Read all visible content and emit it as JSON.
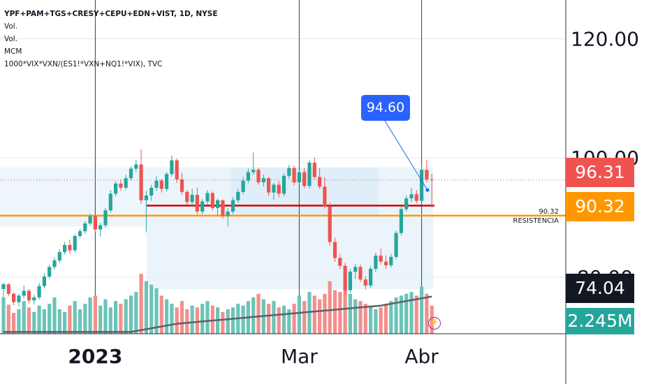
{
  "legend": {
    "title": "YPF+PAM+TGS+CRESY+CEPU+EDN+VIST, 1D, NYSE",
    "lines": [
      "Vol.",
      "Vol.",
      "MCM",
      "1000*VIX*VXN/(ES1!*VXN+NQ1!*VIX), TVC"
    ]
  },
  "callout": {
    "label": "94.60",
    "value": 94.6
  },
  "annotation": {
    "value_label": "90.32",
    "text": "RESISTENCIA"
  },
  "tags": {
    "last_price": {
      "label": "96.31",
      "value": 96.31,
      "color": "#ef5350"
    },
    "resistance": {
      "label": "90.32",
      "value": 90.32,
      "color": "#ff9800"
    },
    "indicator": {
      "label": "74.04",
      "color": "#131722"
    },
    "volume": {
      "label": "2.245M",
      "color": "#26a69a"
    }
  },
  "icons": {
    "alert": "lightning-bolt-icon"
  },
  "chart_data": {
    "type": "candlestick",
    "symbol": "YPF+PAM+TGS+CRESY+CEPU+EDN+VIST",
    "interval": "1D",
    "exchange": "NYSE",
    "y_ticks": [
      {
        "label": "120.00",
        "value": 120
      },
      {
        "label": "100.00",
        "value": 100
      },
      {
        "label": "80.00",
        "value": 80
      }
    ],
    "x_ticks": [
      {
        "label": "2023",
        "index": 18,
        "bold": true
      },
      {
        "label": "Mar",
        "index": 58,
        "bold": false
      },
      {
        "label": "Abr",
        "index": 82,
        "bold": false
      }
    ],
    "ylim": [
      70.5,
      126.5
    ],
    "colors": {
      "up": "#26a69a",
      "down": "#ef5350",
      "up_volume": "#6cc4b8",
      "down_volume": "#f38f8c"
    },
    "resistance_level": 90.32,
    "support_band": 92.0,
    "last_price": 96.31,
    "ohlc": [
      [
        78.0,
        79.1,
        76.6,
        78.8
      ],
      [
        78.8,
        79.0,
        76.8,
        77.2
      ],
      [
        77.2,
        77.4,
        75.3,
        75.8
      ],
      [
        75.8,
        77.2,
        75.1,
        76.9
      ],
      [
        76.9,
        78.6,
        76.4,
        77.7
      ],
      [
        77.7,
        78.0,
        75.6,
        76.1
      ],
      [
        76.1,
        77.0,
        75.4,
        76.6
      ],
      [
        76.6,
        79.0,
        76.2,
        78.5
      ],
      [
        78.5,
        80.6,
        78.1,
        80.1
      ],
      [
        80.1,
        82.1,
        79.8,
        81.7
      ],
      [
        81.7,
        83.3,
        81.3,
        82.8
      ],
      [
        82.8,
        84.7,
        82.4,
        84.2
      ],
      [
        84.2,
        85.9,
        83.8,
        85.4
      ],
      [
        85.4,
        86.3,
        83.9,
        84.5
      ],
      [
        84.5,
        87.2,
        84.1,
        86.9
      ],
      [
        86.9,
        88.1,
        86.5,
        87.7
      ],
      [
        87.7,
        89.4,
        87.3,
        89.0
      ],
      [
        89.0,
        90.6,
        88.7,
        90.2
      ],
      [
        90.2,
        90.5,
        87.5,
        88.0
      ],
      [
        88.0,
        89.1,
        86.8,
        88.7
      ],
      [
        88.7,
        91.6,
        88.3,
        91.2
      ],
      [
        91.2,
        94.6,
        90.8,
        94.0
      ],
      [
        94.0,
        96.1,
        93.6,
        95.7
      ],
      [
        95.7,
        96.4,
        94.5,
        95.0
      ],
      [
        95.0,
        97.2,
        94.7,
        96.6
      ],
      [
        96.6,
        98.6,
        96.2,
        98.2
      ],
      [
        98.2,
        99.7,
        97.6,
        98.9
      ],
      [
        98.9,
        101.5,
        92.3,
        92.9
      ],
      [
        92.9,
        94.5,
        87.5,
        93.7
      ],
      [
        93.7,
        95.5,
        92.8,
        95.0
      ],
      [
        95.0,
        96.9,
        94.5,
        96.2
      ],
      [
        96.2,
        96.5,
        94.2,
        94.8
      ],
      [
        94.8,
        97.6,
        94.4,
        97.3
      ],
      [
        97.3,
        100.4,
        96.9,
        99.6
      ],
      [
        99.6,
        99.9,
        95.8,
        96.4
      ],
      [
        96.4,
        97.5,
        93.8,
        94.3
      ],
      [
        94.3,
        94.6,
        92.1,
        92.6
      ],
      [
        92.6,
        94.8,
        91.9,
        93.8
      ],
      [
        93.8,
        95.0,
        90.5,
        91.0
      ],
      [
        91.0,
        93.1,
        90.5,
        92.7
      ],
      [
        92.7,
        94.6,
        92.2,
        94.1
      ],
      [
        94.1,
        94.4,
        91.2,
        91.6
      ],
      [
        91.6,
        93.2,
        90.4,
        92.9
      ],
      [
        92.9,
        93.0,
        89.8,
        90.3
      ],
      [
        90.3,
        91.6,
        88.5,
        91.0
      ],
      [
        91.0,
        93.4,
        90.6,
        92.9
      ],
      [
        92.9,
        94.8,
        92.5,
        94.3
      ],
      [
        94.3,
        96.8,
        93.9,
        96.2
      ],
      [
        96.2,
        98.2,
        95.8,
        97.6
      ],
      [
        97.6,
        100.9,
        97.2,
        98.0
      ],
      [
        98.0,
        98.4,
        95.5,
        95.9
      ],
      [
        95.9,
        97.2,
        95.2,
        96.6
      ],
      [
        96.6,
        96.8,
        93.6,
        94.2
      ],
      [
        94.2,
        95.8,
        93.0,
        95.5
      ],
      [
        95.5,
        96.1,
        93.4,
        94.0
      ],
      [
        94.0,
        97.4,
        93.6,
        97.0
      ],
      [
        97.0,
        98.8,
        96.5,
        98.3
      ],
      [
        98.3,
        98.7,
        95.4,
        95.9
      ],
      [
        95.9,
        98.0,
        95.6,
        97.6
      ],
      [
        97.6,
        98.3,
        94.9,
        95.3
      ],
      [
        95.3,
        99.6,
        94.9,
        99.2
      ],
      [
        99.2,
        100.1,
        96.4,
        96.8
      ],
      [
        96.8,
        98.3,
        94.8,
        95.2
      ],
      [
        95.2,
        96.8,
        91.5,
        91.9
      ],
      [
        91.9,
        92.5,
        85.3,
        85.9
      ],
      [
        85.9,
        86.6,
        82.6,
        83.2
      ],
      [
        83.2,
        83.9,
        81.3,
        81.9
      ],
      [
        81.9,
        82.4,
        77.1,
        77.8
      ],
      [
        77.8,
        81.4,
        77.4,
        80.9
      ],
      [
        80.9,
        82.2,
        79.7,
        81.7
      ],
      [
        81.7,
        82.1,
        79.2,
        79.6
      ],
      [
        79.6,
        80.2,
        77.9,
        78.6
      ],
      [
        78.6,
        81.8,
        78.2,
        81.4
      ],
      [
        81.4,
        84.1,
        80.9,
        83.6
      ],
      [
        83.6,
        84.8,
        82.1,
        82.6
      ],
      [
        82.6,
        83.6,
        81.4,
        82.0
      ],
      [
        82.0,
        83.9,
        81.6,
        83.4
      ],
      [
        83.4,
        87.8,
        83.0,
        87.4
      ],
      [
        87.4,
        91.8,
        87.0,
        91.4
      ],
      [
        91.4,
        93.7,
        91.0,
        93.2
      ],
      [
        93.2,
        95.0,
        92.6,
        93.9
      ],
      [
        93.9,
        94.6,
        92.4,
        92.8
      ],
      [
        92.8,
        98.6,
        92.4,
        98.0
      ],
      [
        98.0,
        99.7,
        95.9,
        96.4
      ],
      [
        96.4,
        97.3,
        91.7,
        96.31
      ]
    ],
    "volume": [
      0.4,
      0.32,
      0.23,
      0.27,
      0.36,
      0.29,
      0.24,
      0.31,
      0.27,
      0.33,
      0.4,
      0.27,
      0.24,
      0.31,
      0.36,
      0.27,
      0.33,
      0.4,
      0.42,
      0.31,
      0.38,
      0.29,
      0.36,
      0.33,
      0.38,
      0.42,
      0.46,
      0.66,
      0.58,
      0.54,
      0.5,
      0.42,
      0.38,
      0.33,
      0.29,
      0.36,
      0.27,
      0.31,
      0.29,
      0.33,
      0.36,
      0.31,
      0.29,
      0.24,
      0.27,
      0.29,
      0.33,
      0.31,
      0.36,
      0.4,
      0.44,
      0.38,
      0.33,
      0.36,
      0.29,
      0.31,
      0.27,
      0.33,
      0.42,
      0.36,
      0.46,
      0.42,
      0.38,
      0.44,
      0.58,
      0.48,
      0.46,
      0.54,
      0.44,
      0.38,
      0.36,
      0.33,
      0.31,
      0.27,
      0.29,
      0.33,
      0.36,
      0.4,
      0.42,
      0.44,
      0.46,
      0.42,
      0.52,
      0.44,
      0.31
    ],
    "volume_ma": [
      0.02,
      0.02,
      0.02,
      0.02,
      0.02,
      0.02,
      0.02,
      0.02,
      0.02,
      0.02,
      0.02,
      0.02,
      0.02,
      0.02,
      0.02,
      0.02,
      0.02,
      0.02,
      0.02,
      0.02,
      0.02,
      0.02,
      0.02,
      0.02,
      0.02,
      0.02,
      0.03,
      0.04,
      0.05,
      0.06,
      0.07,
      0.08,
      0.09,
      0.1,
      0.11,
      0.115,
      0.12,
      0.125,
      0.13,
      0.135,
      0.14,
      0.145,
      0.15,
      0.155,
      0.16,
      0.165,
      0.17,
      0.175,
      0.18,
      0.185,
      0.19,
      0.195,
      0.2,
      0.205,
      0.21,
      0.215,
      0.22,
      0.225,
      0.23,
      0.235,
      0.24,
      0.245,
      0.25,
      0.255,
      0.26,
      0.265,
      0.27,
      0.275,
      0.28,
      0.285,
      0.29,
      0.295,
      0.3,
      0.305,
      0.31,
      0.32,
      0.33,
      0.34,
      0.35,
      0.36,
      0.37,
      0.38,
      0.39,
      0.4,
      0.41
    ]
  }
}
